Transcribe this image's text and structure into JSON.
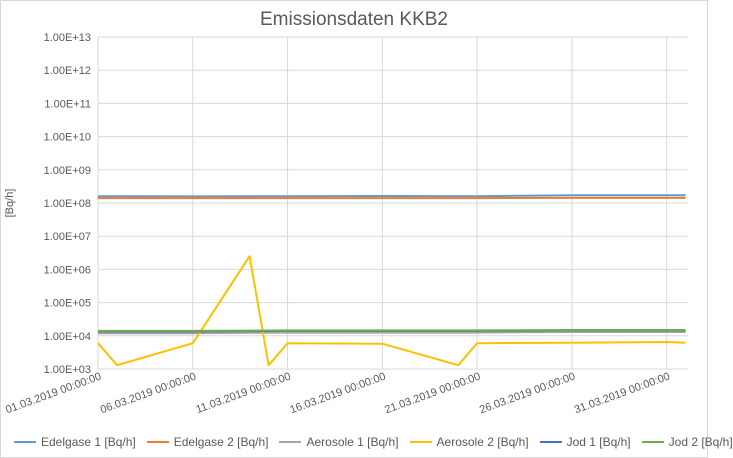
{
  "chart_data": {
    "type": "line",
    "title": "Emissionsdaten KKB2",
    "xlabel": "",
    "ylabel": "[Bq/h]",
    "y_scale": "log",
    "ylim": [
      1000,
      10000000000000
    ],
    "y_ticks": [
      "1.00E+03",
      "1.00E+04",
      "1.00E+05",
      "1.00E+06",
      "1.00E+07",
      "1.00E+08",
      "1.00E+09",
      "1.00E+10",
      "1.00E+11",
      "1.00E+12",
      "1.00E+13"
    ],
    "x_ticks": [
      "01.03.2019 00:00:00",
      "06.03.2019 00:00:00",
      "11.03.2019 00:00:00",
      "16.03.2019 00:00:00",
      "21.03.2019 00:00:00",
      "26.03.2019 00:00:00",
      "31.03.2019 00:00:00"
    ],
    "x_range": [
      "01.03.2019 00:00:00",
      "01.04.2019 03:00:00"
    ],
    "grid": true,
    "legend_position": "bottom",
    "series": [
      {
        "name": "Edelgase 1 [Bq/h]",
        "color": "#5b9bd5",
        "x": [
          "01.03.2019",
          "06.03.2019",
          "11.03.2019",
          "16.03.2019",
          "21.03.2019",
          "26.03.2019",
          "31.03.2019",
          "01.04.2019"
        ],
        "values": [
          160000000,
          158000000,
          160000000,
          162000000,
          160000000,
          170000000,
          172000000,
          170000000
        ]
      },
      {
        "name": "Edelgase 2 [Bq/h]",
        "color": "#ed7d31",
        "x": [
          "01.03.2019",
          "06.03.2019",
          "11.03.2019",
          "16.03.2019",
          "21.03.2019",
          "26.03.2019",
          "31.03.2019",
          "01.04.2019"
        ],
        "values": [
          140000000,
          140000000,
          140000000,
          140000000,
          140000000,
          142000000,
          142000000,
          142000000
        ]
      },
      {
        "name": "Aerosole 1 [Bq/h]",
        "color": "#a5a5a5",
        "x": [
          "01.03.2019",
          "06.03.2019",
          "11.03.2019",
          "16.03.2019",
          "21.03.2019",
          "26.03.2019",
          "31.03.2019",
          "01.04.2019"
        ],
        "values": [
          12000,
          12000,
          12500,
          12500,
          12500,
          13000,
          13000,
          13000
        ]
      },
      {
        "name": "Aerosole 2 [Bq/h]",
        "color": "#ffc000",
        "x": [
          "01.03.2019",
          "02.03.2019",
          "06.03.2019",
          "09.03.2019",
          "10.03.2019",
          "11.03.2019",
          "16.03.2019",
          "20.03.2019",
          "21.03.2019",
          "26.03.2019",
          "31.03.2019",
          "01.04.2019"
        ],
        "values": [
          6000,
          1300,
          6000,
          2500000,
          1300,
          6000,
          5800,
          1300,
          6000,
          6200,
          6500,
          6200
        ]
      },
      {
        "name": "Jod 1 [Bq/h]",
        "color": "#4472c4",
        "x": [
          "01.03.2019",
          "06.03.2019",
          "11.03.2019",
          "16.03.2019",
          "21.03.2019",
          "26.03.2019",
          "31.03.2019",
          "01.04.2019"
        ],
        "values": [
          13500,
          13500,
          14000,
          14000,
          14000,
          14500,
          14500,
          14500
        ]
      },
      {
        "name": "Jod 2 [Bq/h]",
        "color": "#70ad47",
        "x": [
          "01.03.2019",
          "06.03.2019",
          "11.03.2019",
          "16.03.2019",
          "21.03.2019",
          "26.03.2019",
          "31.03.2019",
          "01.04.2019"
        ],
        "values": [
          14000,
          14000,
          14500,
          14500,
          14500,
          15000,
          15000,
          15000
        ]
      }
    ]
  }
}
